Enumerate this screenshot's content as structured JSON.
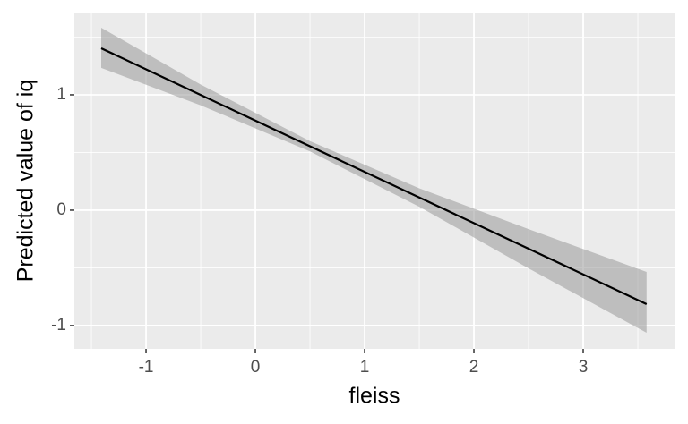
{
  "chart_data": {
    "type": "line-ribbon",
    "x_label": "fleiss",
    "y_label": "Predicted value of iq",
    "x": [
      -1.41,
      -0.5,
      0.5,
      1.5,
      2.5,
      3.58
    ],
    "values": [
      1.403,
      0.999,
      0.554,
      0.11,
      -0.334,
      -0.814
    ],
    "lower": [
      1.233,
      0.909,
      0.509,
      0.03,
      -0.504,
      -1.062
    ],
    "upper": [
      1.581,
      1.089,
      0.599,
      0.19,
      -0.164,
      -0.535
    ],
    "color": "#000000",
    "ribbon_color": "#999999",
    "xlim": [
      -1.656,
      3.836
    ],
    "ylim": [
      -1.202,
      1.713
    ],
    "xticks": [
      -1,
      0,
      1,
      2,
      3
    ],
    "yticks": [
      -1,
      0,
      1
    ],
    "xminor": [
      -1.5,
      -0.5,
      0.5,
      1.5,
      2.5,
      3.5
    ],
    "yminor": [
      -0.5,
      0.5,
      1.5
    ],
    "grid": true
  }
}
